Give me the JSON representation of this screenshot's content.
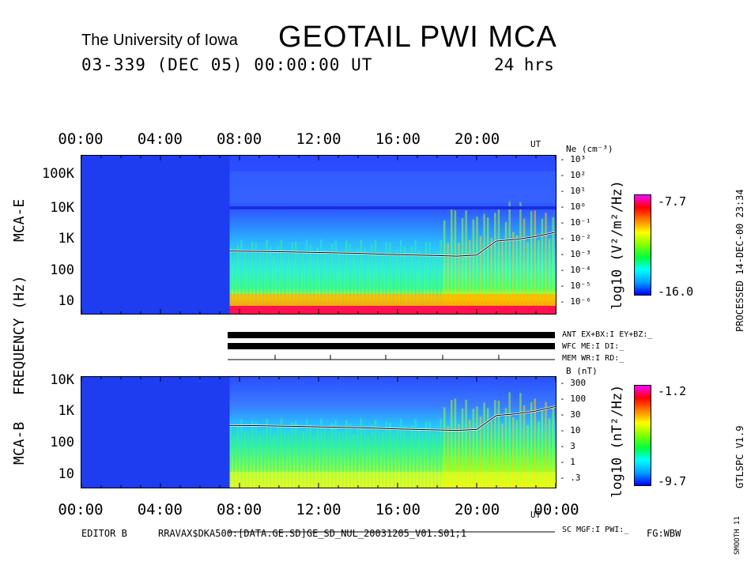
{
  "header": {
    "institution": "The University of Iowa",
    "title": "GEOTAIL PWI MCA",
    "date_line": "03-339 (DEC 05) 00:00:00 UT",
    "span": "24 hrs"
  },
  "time_axis": {
    "top_ticks": [
      "00:00",
      "04:00",
      "08:00",
      "12:00",
      "16:00",
      "20:00"
    ],
    "bottom_ticks": [
      "00:00",
      "04:00",
      "08:00",
      "12:00",
      "16:00",
      "20:00",
      "00:00"
    ],
    "unit": "UT"
  },
  "axis_labels": {
    "frequency": "FREQUENCY (Hz)",
    "panel_e": "MCA-E",
    "panel_b": "MCA-B"
  },
  "mca_e": {
    "y_ticks": [
      "100K",
      "10K",
      "1K",
      "100",
      "10"
    ],
    "ne_label": "Ne (cm⁻³)",
    "ne_ticks": [
      "10³",
      "10²",
      "10¹",
      "10⁰",
      "10⁻¹",
      "10⁻²",
      "10⁻³",
      "10⁻⁴",
      "10⁻⁵",
      "10⁻⁶"
    ],
    "colorbar_max": "-7.7",
    "colorbar_min": "-16.0",
    "colorbar_label": "log10 (V²/m²/Hz)"
  },
  "mca_b": {
    "y_ticks": [
      "10K",
      "1K",
      "100",
      "10"
    ],
    "b_label": "B (nT)",
    "b_ticks": [
      "300",
      "100",
      "30",
      "10",
      "3",
      "1",
      ".3"
    ],
    "colorbar_max": "-1.2",
    "colorbar_min": "-9.7",
    "colorbar_label": "log10 (nT²/Hz)"
  },
  "status": {
    "ant": "ANT EX+BX:I EY+BZ:_",
    "wfc": "WFC ME:I    DI:_",
    "mem": "MEM WR:I    RD:_",
    "sc": "SC MGF:I    PWI:_"
  },
  "side": {
    "processed": "PROCESSED 14-DEC-00  23:34",
    "version": "GTLSPC   V1.9",
    "smooth": "SMOOTH 11"
  },
  "footer": {
    "editor": "EDITOR B",
    "file": "RRAVAX$DKA500:[DATA.GE.SD]GE_SD_NUL_20031205_V01.S01;1",
    "fg": "FG:WBW"
  },
  "chart_data": [
    {
      "type": "heatmap",
      "title": "MCA-E",
      "x_range_hours": [
        0,
        24
      ],
      "ylabel": "Frequency (Hz)",
      "ylim_hz": [
        5,
        311000
      ],
      "data_gap_hours": [
        0,
        7.5
      ],
      "plasma_line_hz": {
        "hours": [
          7.5,
          9,
          10,
          12,
          14,
          16,
          18,
          19,
          20,
          21,
          22,
          23,
          24
        ],
        "values": [
          400,
          390,
          380,
          360,
          340,
          310,
          290,
          280,
          300,
          800,
          900,
          1100,
          1500
        ]
      },
      "colorbar_range": [
        -16.0,
        -7.7
      ]
    },
    {
      "type": "heatmap",
      "title": "MCA-B",
      "x_range_hours": [
        0,
        24
      ],
      "ylabel": "Frequency (Hz)",
      "ylim_hz": [
        5,
        12000
      ],
      "data_gap_hours": [
        0,
        7.5
      ],
      "field_line_hz": {
        "hours": [
          7.5,
          9,
          10,
          12,
          14,
          16,
          18,
          19,
          20,
          21,
          22,
          23,
          24
        ],
        "values": [
          400,
          390,
          380,
          360,
          340,
          310,
          290,
          280,
          300,
          800,
          900,
          1100,
          1500
        ]
      },
      "colorbar_range": [
        -9.7,
        -1.2
      ]
    }
  ]
}
